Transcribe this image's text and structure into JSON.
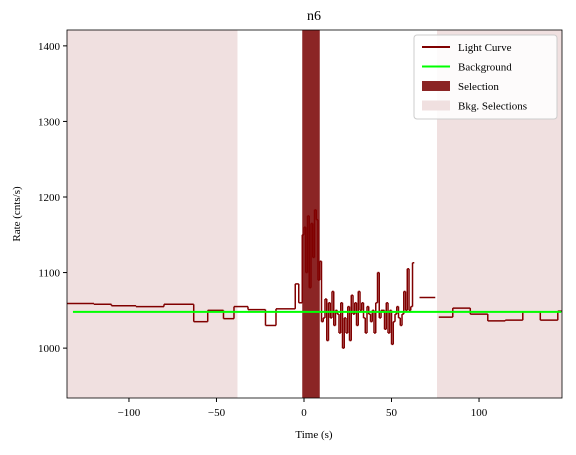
{
  "chart_data": {
    "type": "step",
    "title": "n6",
    "x_label": "Time (s)",
    "y_label": "Rate (cnts/s)",
    "xlim": [
      -135.4,
      147.4
    ],
    "ylim": [
      934,
      1421
    ],
    "xticks": [
      {
        "value": -100,
        "label": "−100"
      },
      {
        "value": -50,
        "label": "−50"
      },
      0,
      50,
      100
    ],
    "yticks": [
      1000,
      1100,
      1200,
      1300,
      1400
    ],
    "legend_position": "upper right",
    "series": [
      {
        "name": "Light Curve",
        "color": "#800000",
        "x": [
          -135.4,
          -120,
          -110,
          -96,
          -80,
          -63,
          -55,
          -46,
          -40,
          -32,
          -22,
          -16,
          -8,
          -5,
          -3,
          -1,
          0,
          1,
          2,
          3,
          4,
          5,
          6,
          7,
          8,
          9,
          10,
          11,
          12,
          13,
          14,
          15,
          16,
          17,
          18,
          19,
          20,
          21,
          22,
          23,
          24,
          25,
          26,
          27,
          28,
          29,
          30,
          31,
          32,
          33,
          34,
          35,
          36,
          37,
          38,
          39,
          40,
          41,
          42,
          43,
          44,
          46,
          47,
          48,
          49,
          50,
          51,
          52,
          53,
          54,
          55,
          56,
          57,
          58,
          59,
          60,
          61,
          62,
          63,
          66,
          75,
          77,
          85,
          95,
          105,
          115,
          125,
          135,
          145
        ],
        "values": [
          1059,
          1058,
          1056,
          1055,
          1058,
          1035,
          1050,
          1039,
          1055,
          1051,
          1030,
          1052,
          1052,
          1085,
          1060,
          1150,
          1160,
          1100,
          1175,
          1080,
          1165,
          1120,
          1183,
          1170,
          1090,
          1115,
          1035,
          1040,
          1065,
          1010,
          1060,
          1040,
          1075,
          1030,
          1050,
          1045,
          1020,
          1060,
          1000,
          1040,
          1020,
          1055,
          1010,
          1070,
          1045,
          1060,
          1030,
          1075,
          1050,
          1060,
          1040,
          1020,
          1055,
          1045,
          1035,
          1050,
          1020,
          1060,
          1100,
          1040,
          1050,
          1025,
          1060,
          1020,
          1050,
          1005,
          1035,
          1045,
          1055,
          1040,
          1030,
          1045,
          1075,
          1050,
          1105,
          1050,
          1055,
          1113,
          null,
          1067,
          null,
          1041,
          1053,
          1045,
          1036,
          1037,
          1048,
          1037,
          1049
        ]
      },
      {
        "name": "Background",
        "color": "#00ff00",
        "x": [
          -132,
          147
        ],
        "values": [
          1048,
          1048
        ]
      }
    ],
    "selection": {
      "name": "Selection",
      "color": "#8b2525",
      "range": [
        -1,
        9
      ]
    },
    "bkg_selections": {
      "name": "Bkg. Selections",
      "color": "#f0e0e0",
      "ranges": [
        [
          -135.4,
          -38
        ],
        [
          76,
          147.4
        ]
      ]
    }
  }
}
